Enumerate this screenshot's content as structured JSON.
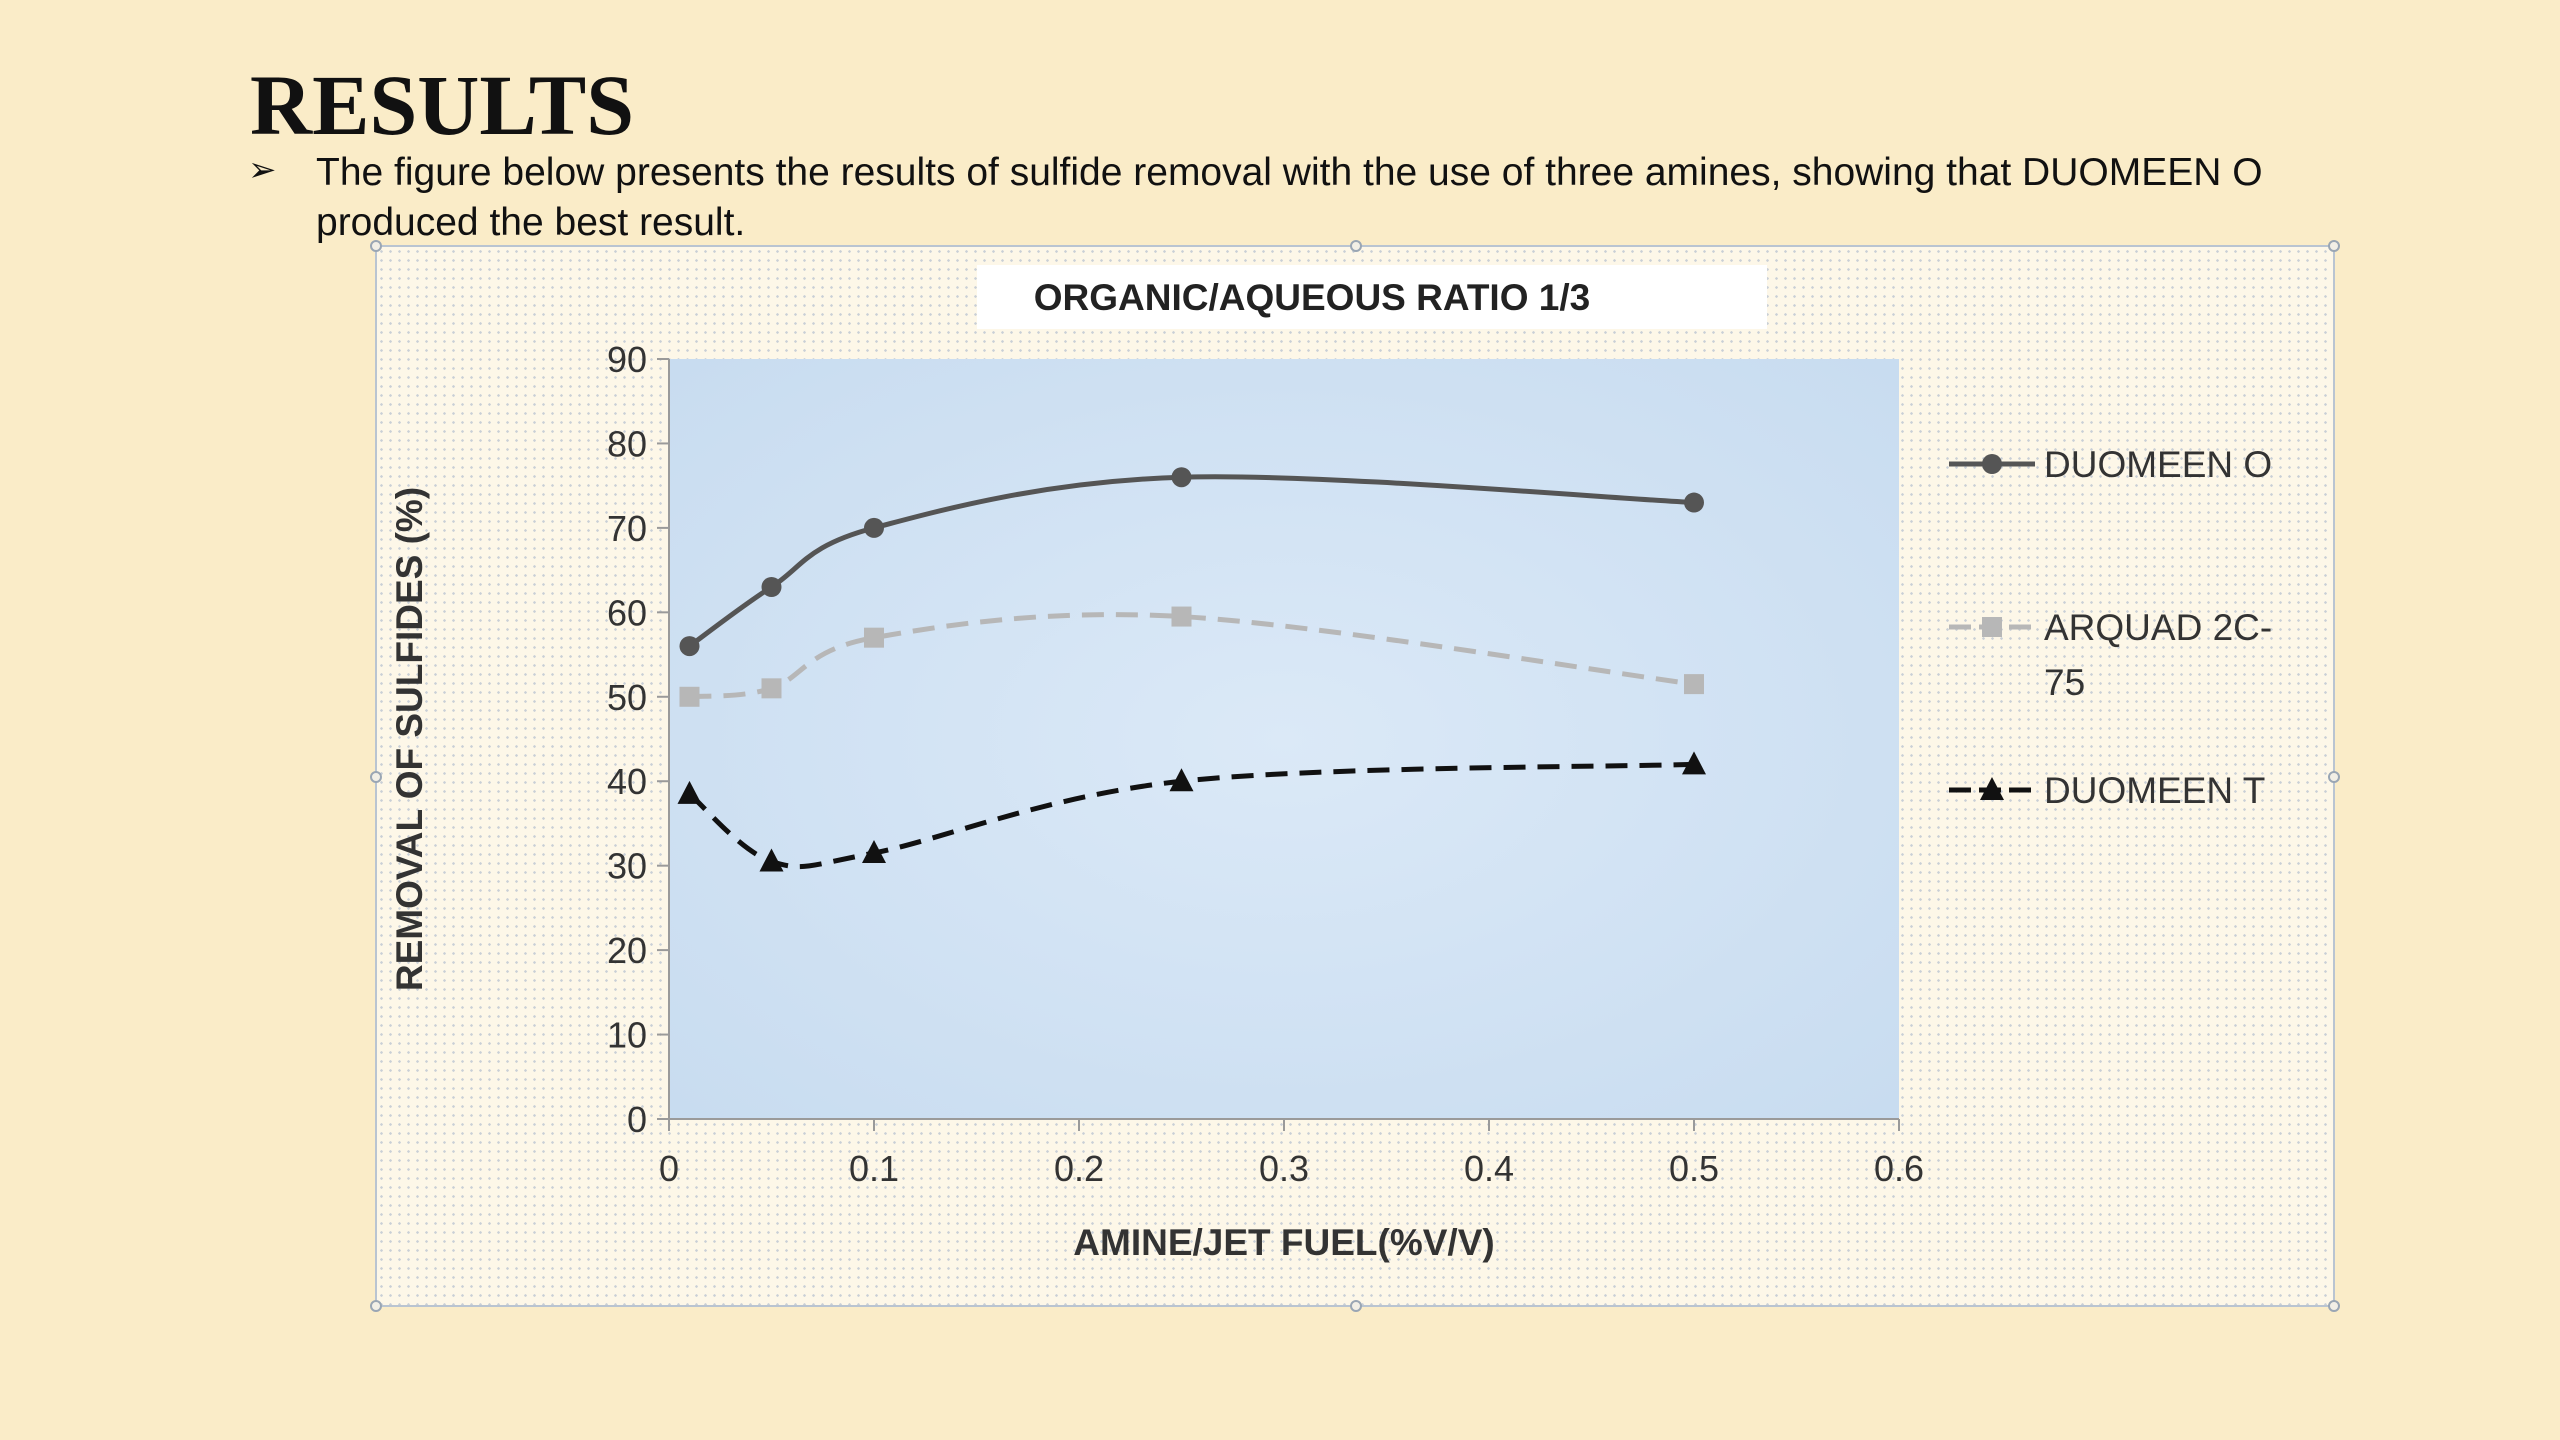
{
  "slide": {
    "title": "RESULTS",
    "bullet_icon": "arrow-bullet-icon",
    "bullet_text": "The figure below presents the results of sulfide removal with the use of three amines, showing that  DUOMEEN O produced the best result."
  },
  "chart_data": {
    "type": "line",
    "title": "ORGANIC/AQUEOUS  RATIO 1/3",
    "xlabel": "AMINE/JET FUEL(%V/V)",
    "ylabel": "REMOVAL OF SULFIDES (%)",
    "xlim": [
      0,
      0.6
    ],
    "ylim": [
      0,
      90
    ],
    "x_ticks": [
      "0",
      "0.1",
      "0.2",
      "0.3",
      "0.4",
      "0.5",
      "0.6"
    ],
    "y_ticks": [
      "0",
      "10",
      "20",
      "30",
      "40",
      "50",
      "60",
      "70",
      "80",
      "90"
    ],
    "legend_position": "right",
    "grid": false,
    "series": [
      {
        "name": "DUOMEEN O",
        "color": "#555555",
        "marker": "circle",
        "line_style": "solid",
        "x": [
          0.01,
          0.05,
          0.1,
          0.25,
          0.5
        ],
        "y": [
          56,
          63,
          70,
          76,
          73
        ]
      },
      {
        "name": "ARQUAD 2C-75",
        "color": "#b7b7b7",
        "marker": "square",
        "line_style": "dashed",
        "x": [
          0.01,
          0.05,
          0.1,
          0.25,
          0.5
        ],
        "y": [
          50,
          51,
          57,
          59.5,
          51.5
        ]
      },
      {
        "name": "DUOMEEN T",
        "color": "#111111",
        "marker": "triangle",
        "line_style": "dashed",
        "x": [
          0.01,
          0.05,
          0.1,
          0.25,
          0.5
        ],
        "y": [
          38.5,
          30.5,
          31.5,
          40,
          42
        ]
      }
    ]
  }
}
